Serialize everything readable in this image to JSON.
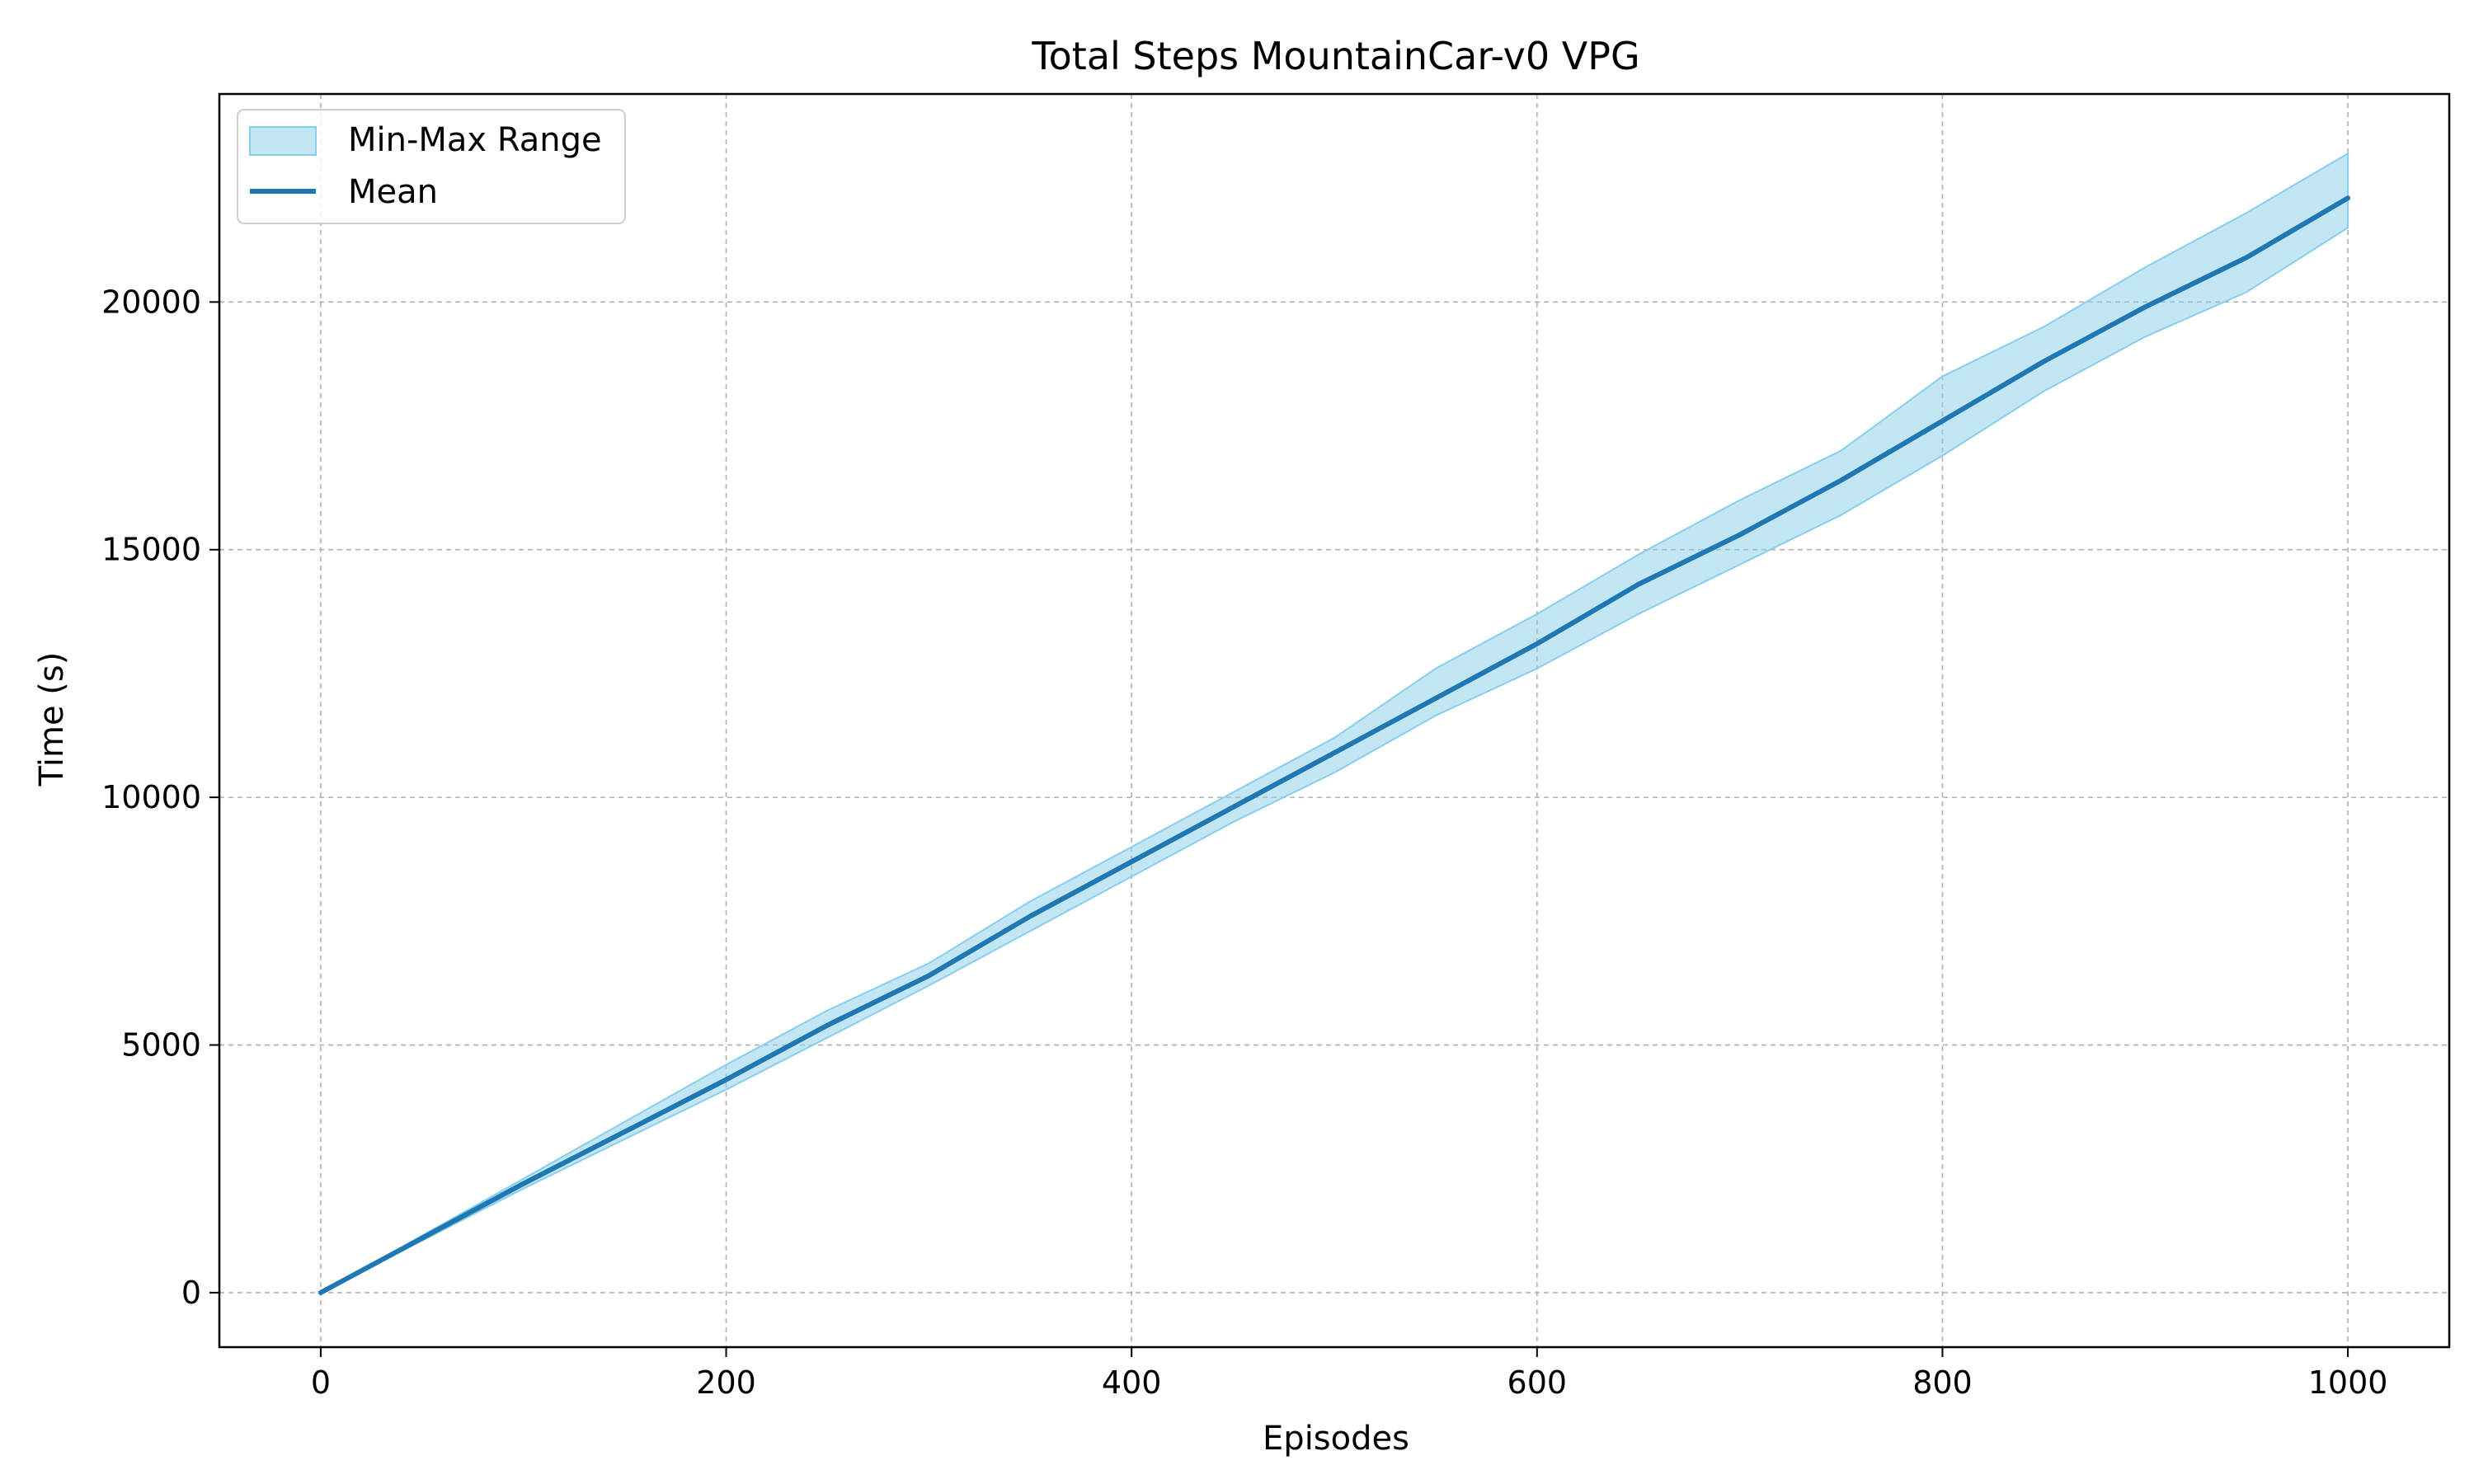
{
  "chart_data": {
    "type": "line",
    "title": "Total Steps MountainCar-v0 VPG",
    "xlabel": "Episodes",
    "ylabel": "Time (s)",
    "xlim": [
      -50,
      1050
    ],
    "ylim": [
      -1100,
      24200
    ],
    "xticks": [
      0,
      200,
      400,
      600,
      800,
      1000
    ],
    "yticks": [
      0,
      5000,
      10000,
      15000,
      20000
    ],
    "grid": true,
    "legend_position": "top-left",
    "colors": {
      "mean": "#1f77b4",
      "band_fill": "#87ceeb",
      "band_edge": "#87ceeb",
      "grid": "#b0b0b0"
    },
    "x": [
      0,
      50,
      100,
      150,
      200,
      250,
      300,
      350,
      400,
      450,
      500,
      550,
      600,
      650,
      700,
      750,
      800,
      850,
      900,
      950,
      1000
    ],
    "series": [
      {
        "name": "Mean",
        "values": [
          0,
          1100,
          2200,
          3250,
          4300,
          5400,
          6400,
          7600,
          8700,
          9800,
          10900,
          12000,
          13100,
          14300,
          15300,
          16400,
          17600,
          18800,
          19900,
          20900,
          22100
        ]
      },
      {
        "name": "Min-Max Range",
        "type": "band",
        "lower": [
          0,
          1050,
          2100,
          3100,
          4100,
          5150,
          6200,
          7300,
          8400,
          9500,
          10500,
          11650,
          12600,
          13700,
          14700,
          15700,
          16900,
          18200,
          19300,
          20200,
          21500
        ],
        "upper": [
          0,
          1150,
          2300,
          3450,
          4600,
          5700,
          6650,
          7900,
          9000,
          10100,
          11200,
          12600,
          13700,
          14900,
          16000,
          17000,
          18500,
          19500,
          20700,
          21800,
          23000
        ]
      }
    ]
  }
}
